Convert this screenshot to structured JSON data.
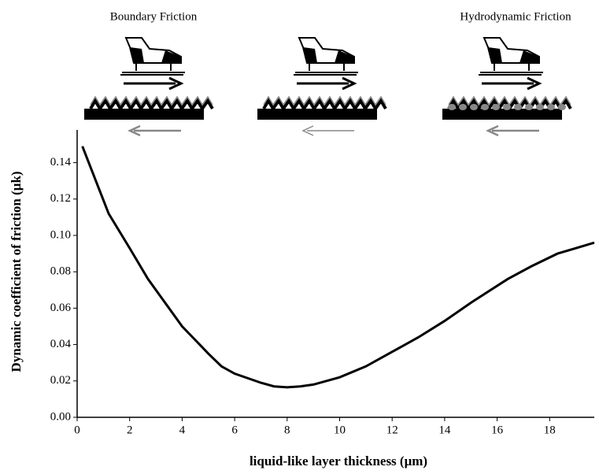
{
  "chart_data": {
    "type": "line",
    "annotations": [
      "Boundary Friction",
      "Hydrodynamic Friction"
    ],
    "xlabel": "liquid-like layer thickness (μm)",
    "ylabel": "Dynamic coefficient of friction (μk)",
    "x": [
      0.2,
      1.2,
      2,
      2.7,
      4,
      5,
      5.5,
      6,
      7,
      7.5,
      8,
      8.5,
      9,
      10,
      11,
      12,
      13,
      14,
      15,
      16.4,
      17.3,
      18.3,
      19,
      19.7
    ],
    "values": [
      0.149,
      0.112,
      0.093,
      0.076,
      0.05,
      0.035,
      0.028,
      0.024,
      0.019,
      0.017,
      0.0165,
      0.017,
      0.018,
      0.022,
      0.028,
      0.036,
      0.044,
      0.053,
      0.063,
      0.076,
      0.083,
      0.09,
      0.093,
      0.096
    ],
    "color": "#000000",
    "xlim": [
      0,
      19.7
    ],
    "ylim": [
      0,
      0.158
    ],
    "xticks": [
      0,
      2,
      4,
      6,
      8,
      10,
      12,
      14,
      16,
      18
    ],
    "yticks": [
      {
        "value": 0,
        "label": "0.00"
      },
      {
        "value": 0.02,
        "label": "0.02"
      },
      {
        "value": 0.04,
        "label": "0.04"
      },
      {
        "value": 0.06,
        "label": "0.06"
      },
      {
        "value": 0.08,
        "label": "0.08"
      },
      {
        "value": 0.1,
        "label": "0.10"
      },
      {
        "value": 0.12,
        "label": "0.12"
      },
      {
        "value": 0.14,
        "label": "0.14"
      }
    ]
  }
}
